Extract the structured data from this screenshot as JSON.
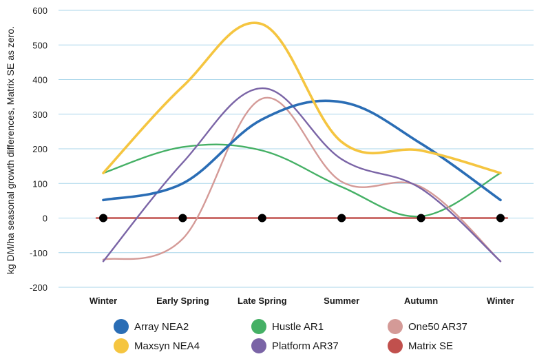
{
  "chart_data": {
    "type": "line",
    "title": "",
    "xlabel": "",
    "ylabel": "kg DM/ha seasonal growth differences, Matrix SE as zero.",
    "ylim": [
      -200,
      600
    ],
    "yticks": [
      "-200",
      "-100",
      "0",
      "100",
      "200",
      "300",
      "400",
      "500",
      "600"
    ],
    "categories": [
      "Winter",
      "Early Spring",
      "Late Spring",
      "Summer",
      "Autumn",
      "Winter"
    ],
    "grid": "horizontal",
    "legend_position": "bottom",
    "series": [
      {
        "name": "Array NEA2",
        "color": "#2a6db5",
        "values": [
          52,
          100,
          285,
          335,
          215,
          52
        ]
      },
      {
        "name": "Hustle AR1",
        "color": "#45b065",
        "values": [
          130,
          205,
          195,
          90,
          5,
          130
        ]
      },
      {
        "name": "One50 AR37",
        "color": "#d49a97",
        "values": [
          -120,
          -60,
          345,
          105,
          90,
          -125
        ]
      },
      {
        "name": "Maxsyn NEA4",
        "color": "#f5c540",
        "values": [
          130,
          380,
          560,
          220,
          195,
          130
        ]
      },
      {
        "name": "Platform AR37",
        "color": "#7a64a6",
        "values": [
          -125,
          160,
          375,
          170,
          85,
          -125
        ]
      },
      {
        "name": "Matrix SE",
        "color": "#c1504d",
        "values": [
          0,
          0,
          0,
          0,
          0,
          0
        ]
      }
    ]
  }
}
